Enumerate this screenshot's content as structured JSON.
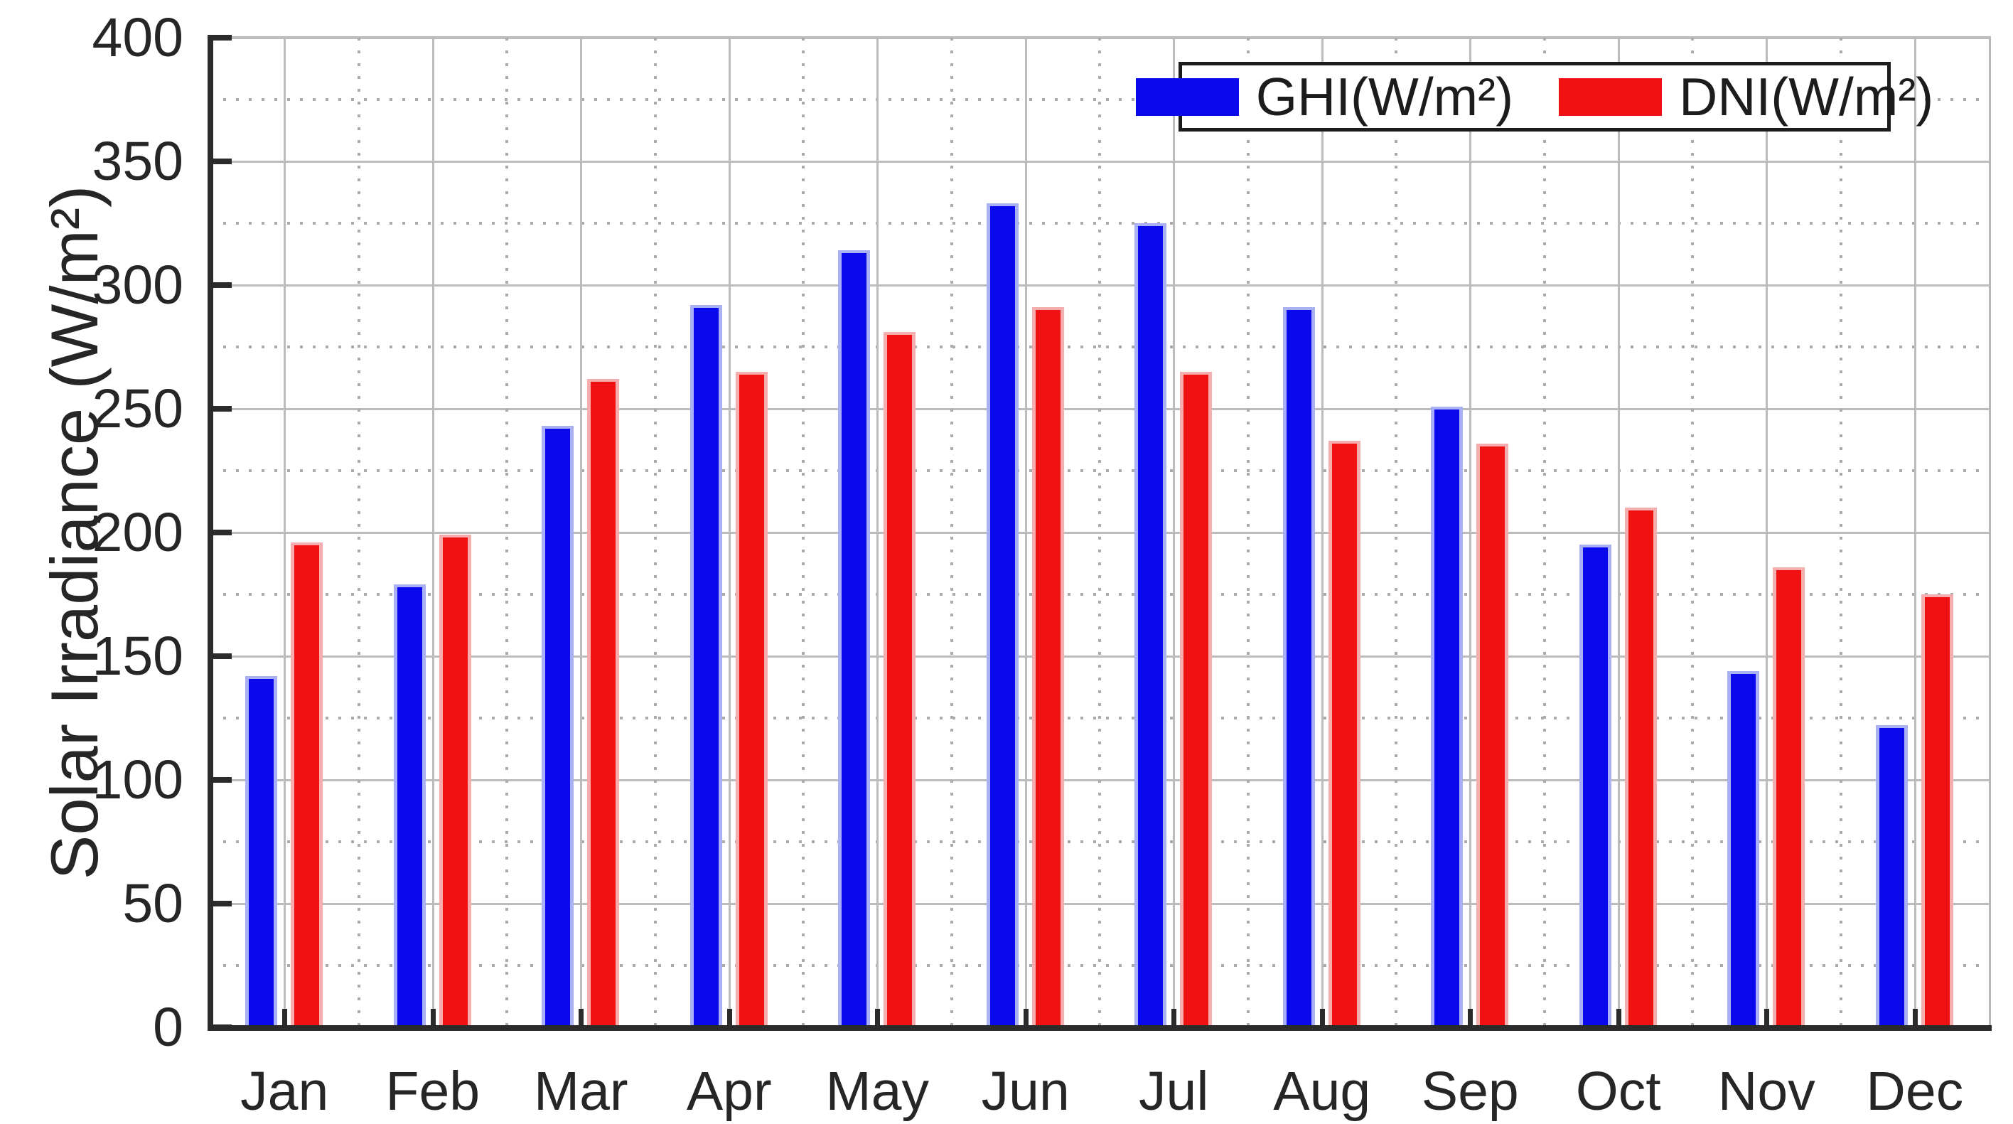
{
  "chart_data": {
    "type": "bar",
    "title": "",
    "xlabel": "",
    "ylabel": "Solar Irradiance (W/m²)",
    "categories": [
      "Jan",
      "Feb",
      "Mar",
      "Apr",
      "May",
      "Jun",
      "Jul",
      "Aug",
      "Sep",
      "Oct",
      "Nov",
      "Dec"
    ],
    "series": [
      {
        "name": "GHI(W/m²)",
        "color": "#0909ec",
        "edge_color": "#a9b1f4",
        "values": [
          142,
          179,
          243,
          292,
          314,
          333,
          325,
          291,
          251,
          195,
          144,
          122
        ]
      },
      {
        "name": "DNI(W/m²)",
        "color": "#f01212",
        "edge_color": "#f6adad",
        "values": [
          196,
          199,
          262,
          265,
          281,
          291,
          265,
          237,
          236,
          210,
          186,
          175
        ]
      }
    ],
    "ylim": [
      0,
      400
    ],
    "y_ticks": [
      "0",
      "50",
      "100",
      "150",
      "200",
      "250",
      "300",
      "350",
      "400"
    ],
    "y_minor_step": 25,
    "grid": {
      "major": "solid",
      "minor": "dotted",
      "major_color": "#bcbcbc",
      "minor_color": "#ababab"
    },
    "axis_color": "#2b2b2b",
    "legend_position": "top-right"
  }
}
